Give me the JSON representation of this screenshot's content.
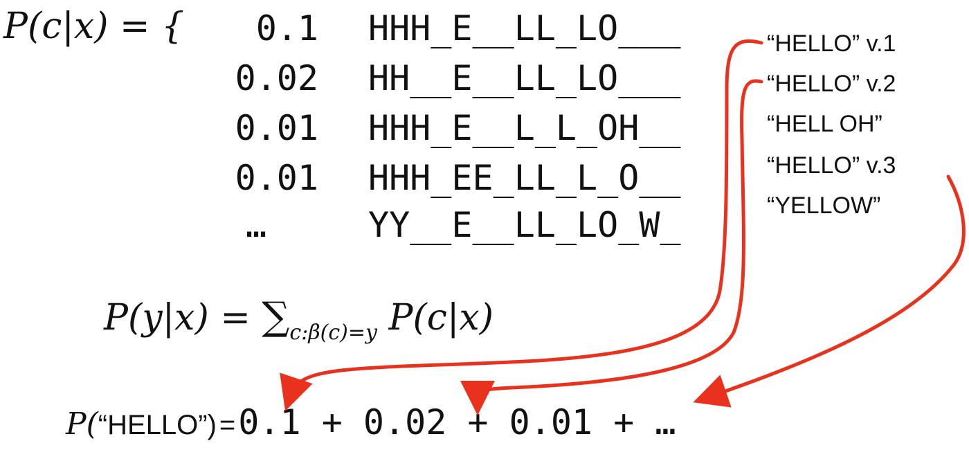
{
  "lhs": {
    "symbol": "P(c|x) = {"
  },
  "rows": [
    {
      "prob": "0.1",
      "alignment": "HHH_E__LL_LO___",
      "label": "“HELLO”  v.1"
    },
    {
      "prob": "0.02",
      "alignment": "HH__E__LL_LO___",
      "label": "“HELLO”  v.2"
    },
    {
      "prob": "0.01",
      "alignment": "HHH_E__L_L_OH__",
      "label": "“HELL OH”"
    },
    {
      "prob": "0.01",
      "alignment": "HHH_EE_LL_L_O__",
      "label": "“HELLO”  v.3"
    },
    {
      "prob": "…",
      "alignment": "YY__E__LL_LO_W_",
      "label": "“YELLOW”"
    }
  ],
  "marginal": {
    "left": "P(y|x) =",
    "sigma": "∑",
    "subscript": "c:β(c)=y",
    "right": "P(c|x)"
  },
  "result": {
    "p": "P(",
    "word": "“HELLO”)",
    "equals": "=",
    "sum": "0.1 + 0.02 + 0.01 + …"
  },
  "colors": {
    "arrow": "#e8321e",
    "text": "#111111"
  }
}
